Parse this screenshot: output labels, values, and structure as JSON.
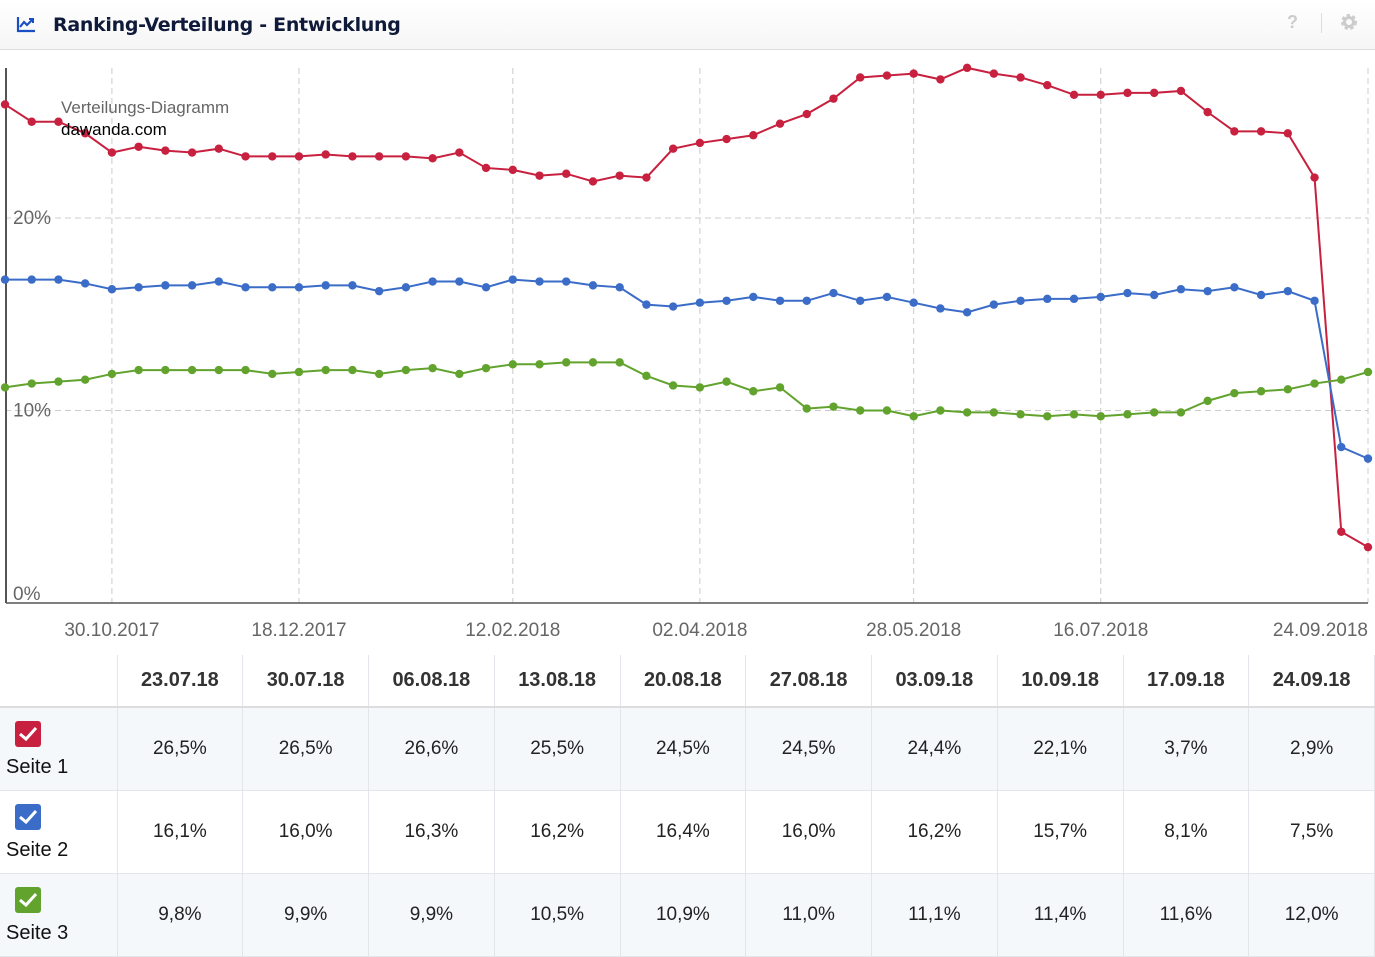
{
  "header": {
    "title": "Ranking-Verteilung - Entwicklung",
    "help": "?"
  },
  "chart_data": {
    "type": "line",
    "title": "Verteilungs-Diagramm",
    "subtitle": "dawanda.com",
    "ylim": [
      0,
      28
    ],
    "yticks": [
      {
        "value": 0,
        "label": "0%"
      },
      {
        "value": 10,
        "label": "10%"
      },
      {
        "value": 20,
        "label": "20%"
      }
    ],
    "xticks": [
      {
        "index": 4,
        "label": "30.10.2017"
      },
      {
        "index": 11,
        "label": "18.12.2017"
      },
      {
        "index": 19,
        "label": "12.02.2018"
      },
      {
        "index": 26,
        "label": "02.04.2018"
      },
      {
        "index": 34,
        "label": "28.05.2018"
      },
      {
        "index": 41,
        "label": "16.07.2018"
      },
      {
        "index": 51,
        "label": "24.09.2018"
      }
    ],
    "x_start": "02.10.2017",
    "x_step": "weekly",
    "n_points": 52,
    "series": [
      {
        "name": "Seite 1",
        "color": "#c8203f",
        "values": [
          25.9,
          25.0,
          25.0,
          24.4,
          23.4,
          23.7,
          23.5,
          23.4,
          23.6,
          23.2,
          23.2,
          23.2,
          23.3,
          23.2,
          23.2,
          23.2,
          23.1,
          23.4,
          22.6,
          22.5,
          22.2,
          22.3,
          21.9,
          22.2,
          22.1,
          23.6,
          23.9,
          24.1,
          24.3,
          24.9,
          25.4,
          26.2,
          27.3,
          27.4,
          27.5,
          27.2,
          27.8,
          27.5,
          27.3,
          26.9,
          26.4,
          26.4,
          26.5,
          26.5,
          26.6,
          25.5,
          24.5,
          24.5,
          24.4,
          22.1,
          3.7,
          2.9
        ]
      },
      {
        "name": "Seite 2",
        "color": "#3a6cc8",
        "values": [
          16.8,
          16.8,
          16.8,
          16.6,
          16.3,
          16.4,
          16.5,
          16.5,
          16.7,
          16.4,
          16.4,
          16.4,
          16.5,
          16.5,
          16.2,
          16.4,
          16.7,
          16.7,
          16.4,
          16.8,
          16.7,
          16.7,
          16.5,
          16.4,
          15.5,
          15.4,
          15.6,
          15.7,
          15.9,
          15.7,
          15.7,
          16.1,
          15.7,
          15.9,
          15.6,
          15.3,
          15.1,
          15.5,
          15.7,
          15.8,
          15.8,
          15.9,
          16.1,
          16.0,
          16.3,
          16.2,
          16.4,
          16.0,
          16.2,
          15.7,
          8.1,
          7.5
        ]
      },
      {
        "name": "Seite 3",
        "color": "#62a32e",
        "values": [
          11.2,
          11.4,
          11.5,
          11.6,
          11.9,
          12.1,
          12.1,
          12.1,
          12.1,
          12.1,
          11.9,
          12.0,
          12.1,
          12.1,
          11.9,
          12.1,
          12.2,
          11.9,
          12.2,
          12.4,
          12.4,
          12.5,
          12.5,
          12.5,
          11.8,
          11.3,
          11.2,
          11.5,
          11.0,
          11.2,
          10.1,
          10.2,
          10.0,
          10.0,
          9.7,
          10.0,
          9.9,
          9.9,
          9.8,
          9.7,
          9.8,
          9.7,
          9.8,
          9.9,
          9.9,
          10.5,
          10.9,
          11.0,
          11.1,
          11.4,
          11.6,
          12.0
        ]
      }
    ]
  },
  "table": {
    "columns": [
      "23.07.18",
      "30.07.18",
      "06.08.18",
      "13.08.18",
      "20.08.18",
      "27.08.18",
      "03.09.18",
      "10.09.18",
      "17.09.18",
      "24.09.18"
    ],
    "rows": [
      {
        "label": "Seite 1",
        "color": "#c8203f",
        "checked": true,
        "values": [
          "26,5%",
          "26,5%",
          "26,6%",
          "25,5%",
          "24,5%",
          "24,5%",
          "24,4%",
          "22,1%",
          "3,7%",
          "2,9%"
        ]
      },
      {
        "label": "Seite 2",
        "color": "#3a6cc8",
        "checked": true,
        "values": [
          "16,1%",
          "16,0%",
          "16,3%",
          "16,2%",
          "16,4%",
          "16,0%",
          "16,2%",
          "15,7%",
          "8,1%",
          "7,5%"
        ]
      },
      {
        "label": "Seite 3",
        "color": "#62a32e",
        "checked": true,
        "values": [
          "9,8%",
          "9,9%",
          "9,9%",
          "10,5%",
          "10,9%",
          "11,0%",
          "11,1%",
          "11,4%",
          "11,6%",
          "12,0%"
        ]
      }
    ]
  }
}
